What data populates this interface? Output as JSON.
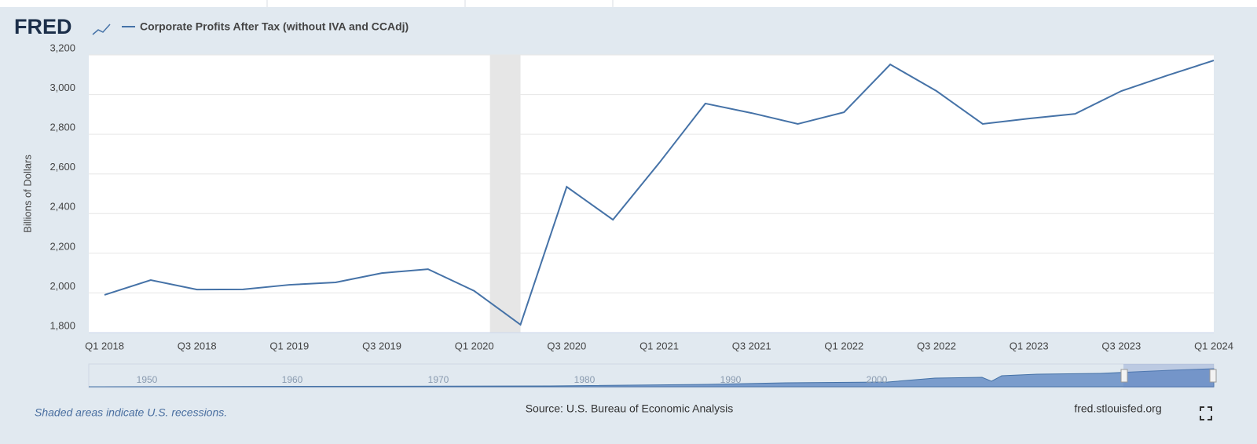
{
  "logo": "FRED",
  "chart_data": {
    "type": "line",
    "y_label": "Billions of Dollars",
    "categories": [
      "Q1 2018",
      null,
      "Q3 2018",
      null,
      "Q1 2019",
      null,
      "Q3 2019",
      null,
      "Q1 2020",
      null,
      "Q3 2020",
      null,
      "Q1 2021",
      null,
      "Q3 2021",
      null,
      "Q1 2022",
      null,
      "Q3 2022",
      null,
      "Q1 2023",
      null,
      "Q3 2023",
      null,
      "Q1 2024"
    ],
    "series": [
      {
        "name": "Corporate Profits After Tax (without IVA and CCAdj)",
        "color": "#4572a7",
        "values": [
          1990,
          2065,
          2017,
          2018,
          2041,
          2053,
          2100,
          2120,
          2010,
          1840,
          2535,
          2369,
          2655,
          2955,
          2907,
          2852,
          2911,
          3152,
          3018,
          2852,
          2879,
          2903,
          3018,
          3097,
          3172
        ]
      }
    ],
    "ylim": [
      1800,
      3200
    ],
    "yticks": [
      {
        "value": 1800,
        "label": "1,800"
      },
      {
        "value": 2000,
        "label": "2,000"
      },
      {
        "value": 2200,
        "label": "2,200"
      },
      {
        "value": 2400,
        "label": "2,400"
      },
      {
        "value": 2600,
        "label": "2,600"
      },
      {
        "value": 2800,
        "label": "2,800"
      },
      {
        "value": 3000,
        "label": "3,000"
      },
      {
        "value": 3200,
        "label": "3,200"
      }
    ],
    "grid": true,
    "recession": {
      "start": 8,
      "end": 9
    }
  },
  "navigator": {
    "labels": [
      "1950",
      "1960",
      "1970",
      "1980",
      "1990",
      "2000"
    ]
  },
  "footer": {
    "note": "Shaded areas indicate U.S. recessions.",
    "source": "Source: U.S. Bureau of Economic Analysis",
    "site": "fred.stlouisfed.org"
  }
}
